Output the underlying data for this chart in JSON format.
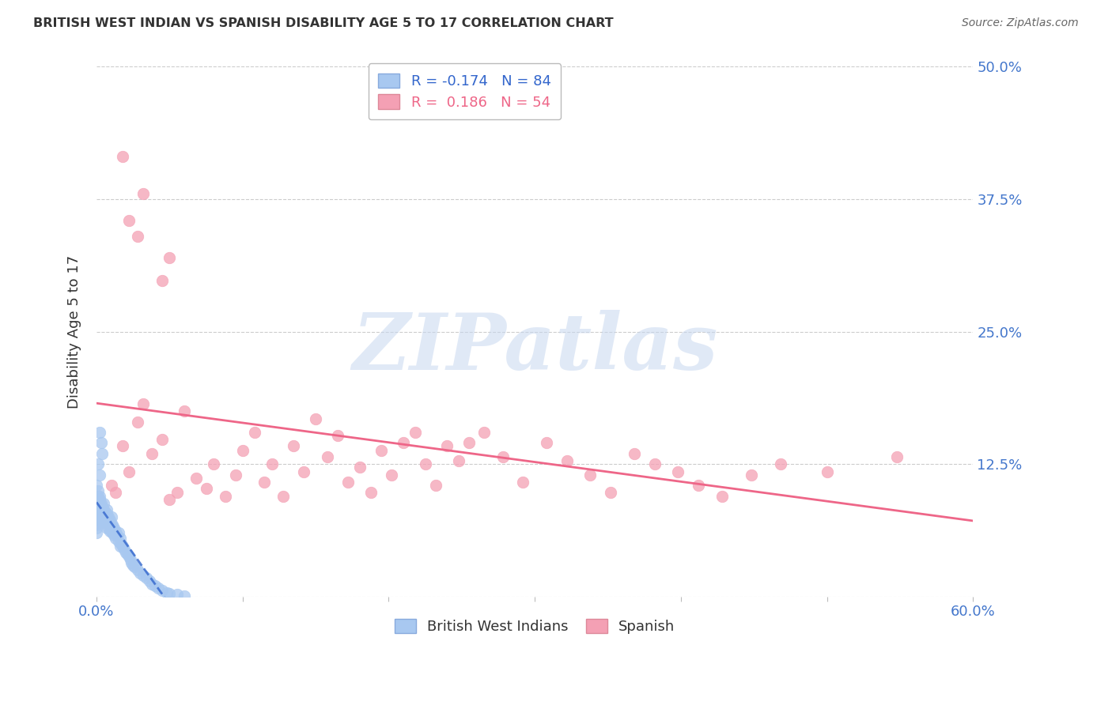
{
  "title": "BRITISH WEST INDIAN VS SPANISH DISABILITY AGE 5 TO 17 CORRELATION CHART",
  "source": "Source: ZipAtlas.com",
  "ylabel": "Disability Age 5 to 17",
  "xlim": [
    0.0,
    0.6
  ],
  "ylim": [
    0.0,
    0.5
  ],
  "bwi_color": "#a8c8f0",
  "spanish_color": "#f4a0b4",
  "bwi_line_color": "#3366cc",
  "spanish_line_color": "#ee6688",
  "bwi_R": -0.174,
  "bwi_N": 84,
  "spanish_R": 0.186,
  "spanish_N": 54,
  "watermark_text": "ZIPatlas",
  "watermark_color": "#c8d8f0",
  "grid_color": "#cccccc",
  "tick_color": "#4477cc",
  "background_color": "#ffffff",
  "bwi_scatter_x": [
    0.0,
    0.0,
    0.0,
    0.0,
    0.0,
    0.0,
    0.0,
    0.0,
    0.0,
    0.0,
    0.001,
    0.001,
    0.001,
    0.001,
    0.002,
    0.002,
    0.002,
    0.002,
    0.003,
    0.003,
    0.003,
    0.004,
    0.004,
    0.004,
    0.004,
    0.005,
    0.005,
    0.005,
    0.005,
    0.006,
    0.006,
    0.006,
    0.007,
    0.007,
    0.007,
    0.007,
    0.008,
    0.008,
    0.008,
    0.009,
    0.009,
    0.009,
    0.01,
    0.01,
    0.01,
    0.011,
    0.011,
    0.012,
    0.012,
    0.013,
    0.013,
    0.014,
    0.015,
    0.015,
    0.016,
    0.016,
    0.017,
    0.018,
    0.019,
    0.02,
    0.021,
    0.022,
    0.023,
    0.024,
    0.025,
    0.026,
    0.028,
    0.03,
    0.032,
    0.034,
    0.036,
    0.038,
    0.04,
    0.042,
    0.045,
    0.048,
    0.05,
    0.055,
    0.06,
    0.002,
    0.003,
    0.004,
    0.001,
    0.002
  ],
  "bwi_scatter_y": [
    0.105,
    0.09,
    0.085,
    0.08,
    0.078,
    0.075,
    0.072,
    0.068,
    0.065,
    0.06,
    0.1,
    0.095,
    0.09,
    0.085,
    0.095,
    0.092,
    0.085,
    0.08,
    0.088,
    0.082,
    0.078,
    0.085,
    0.08,
    0.075,
    0.07,
    0.088,
    0.082,
    0.078,
    0.072,
    0.08,
    0.075,
    0.07,
    0.082,
    0.078,
    0.072,
    0.065,
    0.075,
    0.07,
    0.065,
    0.072,
    0.068,
    0.062,
    0.075,
    0.068,
    0.062,
    0.068,
    0.06,
    0.065,
    0.058,
    0.062,
    0.055,
    0.058,
    0.06,
    0.052,
    0.055,
    0.048,
    0.05,
    0.048,
    0.045,
    0.042,
    0.04,
    0.038,
    0.035,
    0.032,
    0.03,
    0.028,
    0.025,
    0.022,
    0.02,
    0.018,
    0.015,
    0.012,
    0.01,
    0.008,
    0.006,
    0.004,
    0.003,
    0.002,
    0.001,
    0.155,
    0.145,
    0.135,
    0.125,
    0.115
  ],
  "spanish_scatter_x": [
    0.01,
    0.013,
    0.018,
    0.022,
    0.028,
    0.032,
    0.038,
    0.045,
    0.05,
    0.055,
    0.06,
    0.068,
    0.075,
    0.08,
    0.088,
    0.095,
    0.1,
    0.108,
    0.115,
    0.12,
    0.128,
    0.135,
    0.142,
    0.15,
    0.158,
    0.165,
    0.172,
    0.18,
    0.188,
    0.195,
    0.202,
    0.21,
    0.218,
    0.225,
    0.232,
    0.24,
    0.248,
    0.255,
    0.265,
    0.278,
    0.292,
    0.308,
    0.322,
    0.338,
    0.352,
    0.368,
    0.382,
    0.398,
    0.412,
    0.428,
    0.448,
    0.468,
    0.5,
    0.548
  ],
  "spanish_scatter_y": [
    0.105,
    0.098,
    0.142,
    0.118,
    0.165,
    0.182,
    0.135,
    0.148,
    0.092,
    0.098,
    0.175,
    0.112,
    0.102,
    0.125,
    0.095,
    0.115,
    0.138,
    0.155,
    0.108,
    0.125,
    0.095,
    0.142,
    0.118,
    0.168,
    0.132,
    0.152,
    0.108,
    0.122,
    0.098,
    0.138,
    0.115,
    0.145,
    0.155,
    0.125,
    0.105,
    0.142,
    0.128,
    0.145,
    0.155,
    0.132,
    0.108,
    0.145,
    0.128,
    0.115,
    0.098,
    0.135,
    0.125,
    0.118,
    0.105,
    0.095,
    0.115,
    0.125,
    0.118,
    0.132
  ],
  "spanish_outlier_x": [
    0.018,
    0.022,
    0.028,
    0.032,
    0.045,
    0.05
  ],
  "spanish_outlier_y": [
    0.415,
    0.355,
    0.34,
    0.38,
    0.298,
    0.32
  ]
}
